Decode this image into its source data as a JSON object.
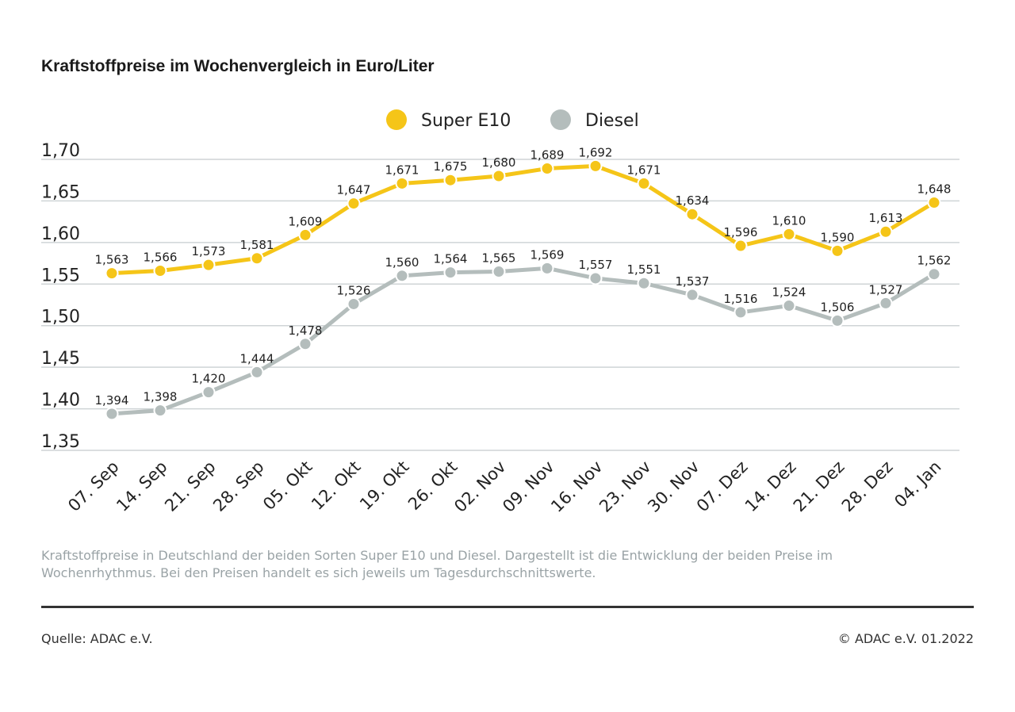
{
  "chart_data": {
    "type": "line",
    "title": "Kraftstoffpreise im Wochenvergleich in Euro/Liter",
    "categories": [
      "07. Sep",
      "14. Sep",
      "21. Sep",
      "28. Sep",
      "05. Okt",
      "12. Okt",
      "19. Okt",
      "26. Okt",
      "02. Nov",
      "09. Nov",
      "16. Nov",
      "23. Nov",
      "30. Nov",
      "07. Dez",
      "14. Dez",
      "21. Dez",
      "28. Dez",
      "04. Jan"
    ],
    "series": [
      {
        "name": "Super E10",
        "color": "#f5c518",
        "values": [
          1.563,
          1.566,
          1.573,
          1.581,
          1.609,
          1.647,
          1.671,
          1.675,
          1.68,
          1.689,
          1.692,
          1.671,
          1.634,
          1.596,
          1.61,
          1.59,
          1.613,
          1.648
        ],
        "labels": [
          "1,563",
          "1,566",
          "1,573",
          "1,581",
          "1,609",
          "1,647",
          "1,671",
          "1,675",
          "1,680",
          "1,689",
          "1,692",
          "1,671",
          "1,634",
          "1,596",
          "1,610",
          "1,590",
          "1,613",
          "1,648"
        ]
      },
      {
        "name": "Diesel",
        "color": "#b4bdbc",
        "values": [
          1.394,
          1.398,
          1.42,
          1.444,
          1.478,
          1.526,
          1.56,
          1.564,
          1.565,
          1.569,
          1.557,
          1.551,
          1.537,
          1.516,
          1.524,
          1.506,
          1.527,
          1.562
        ],
        "labels": [
          "1,394",
          "1,398",
          "1,420",
          "1,444",
          "1,478",
          "1,526",
          "1,560",
          "1,564",
          "1,565",
          "1,569",
          "1,557",
          "1,551",
          "1,537",
          "1,516",
          "1,524",
          "1,506",
          "1,527",
          "1,562"
        ]
      }
    ],
    "ylim": [
      1.35,
      1.7
    ],
    "yticks": [
      1.7,
      1.65,
      1.6,
      1.55,
      1.5,
      1.45,
      1.4,
      1.35
    ],
    "ytick_labels": [
      "1,70",
      "1,65",
      "1,60",
      "1,55",
      "1,50",
      "1,45",
      "1,40",
      "1,35"
    ],
    "grid": true,
    "legend_position": "top-center"
  },
  "note": "Kraftstoffpreise in Deutschland der beiden Sorten Super E10 und Diesel. Dargestellt ist die Entwicklung der beiden Preise im Wochenrhythmus. Bei den Preisen handelt es sich jeweils um Tagesdurchschnittswerte.",
  "source": "Quelle: ADAC e.V.",
  "copyright": "© ADAC e.V. 01.2022"
}
